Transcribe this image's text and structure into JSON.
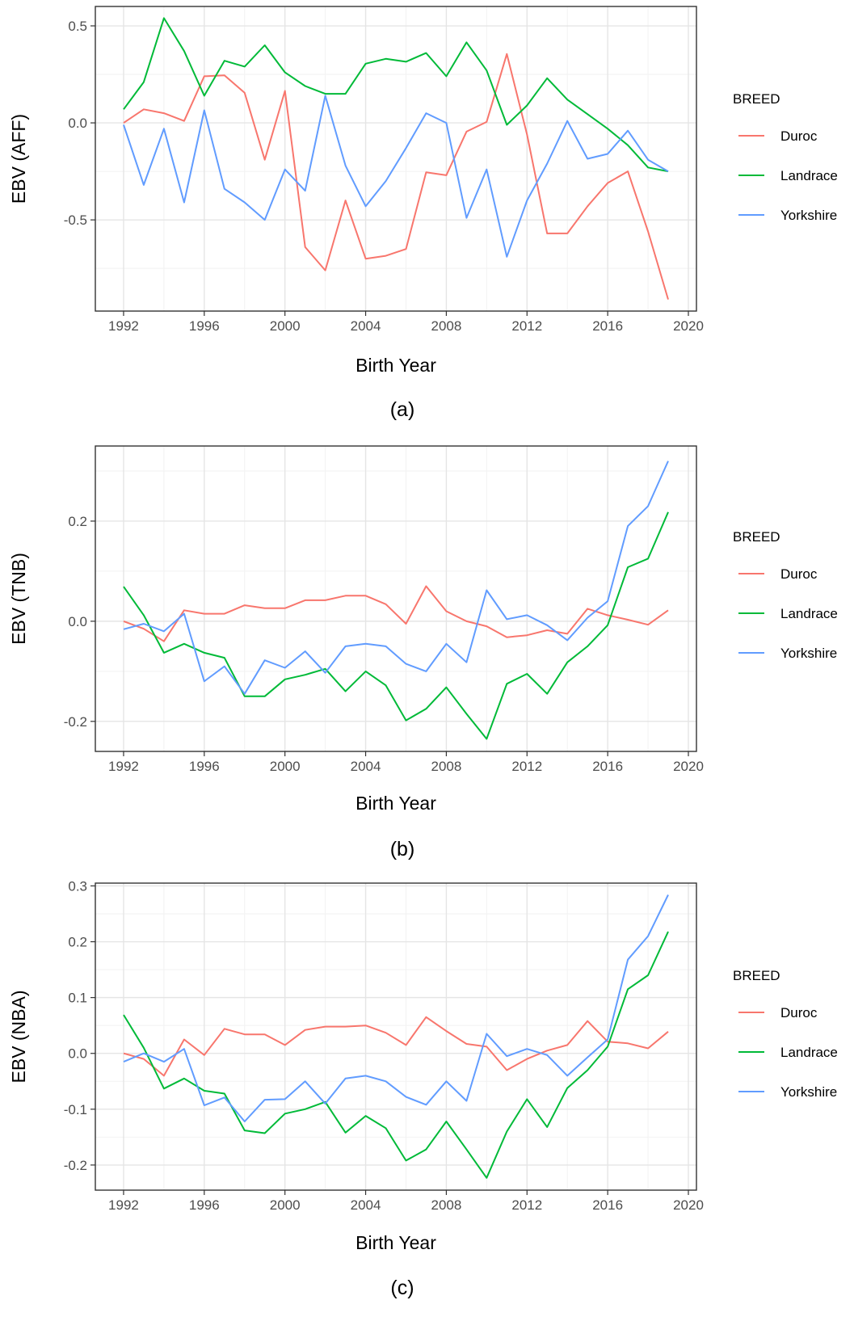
{
  "chart_data": [
    {
      "type": "line",
      "panel_label": "(a)",
      "xlabel": "Birth Year",
      "ylabel": "EBV (AFF)",
      "xlim": [
        1990.6,
        2020.4
      ],
      "ylim": [
        -0.97,
        0.6
      ],
      "xticks": [
        1992,
        1996,
        2000,
        2004,
        2008,
        2012,
        2016,
        2020
      ],
      "yticks": [
        -0.5,
        0.0,
        0.5
      ],
      "ytick_labels": [
        "-0.5",
        "0.0",
        "0.5"
      ],
      "grid": true,
      "legend": {
        "title": "BREED",
        "position": "right"
      },
      "x": [
        1992,
        1993,
        1994,
        1995,
        1996,
        1997,
        1998,
        1999,
        2000,
        2001,
        2002,
        2003,
        2004,
        2005,
        2006,
        2007,
        2008,
        2009,
        2010,
        2011,
        2012,
        2013,
        2014,
        2015,
        2016,
        2017,
        2018,
        2019
      ],
      "series": [
        {
          "name": "Duroc",
          "color": "#F8766D",
          "values": [
            0.0,
            0.07,
            0.05,
            0.01,
            0.24,
            0.245,
            0.155,
            -0.19,
            0.165,
            -0.64,
            -0.76,
            -0.4,
            -0.7,
            -0.685,
            -0.65,
            -0.255,
            -0.27,
            -0.045,
            0.005,
            0.355,
            -0.06,
            -0.57,
            -0.57,
            -0.43,
            -0.31,
            -0.25,
            -0.56,
            -0.91
          ]
        },
        {
          "name": "Landrace",
          "color": "#00BA38",
          "values": [
            0.07,
            0.21,
            0.54,
            0.37,
            0.14,
            0.32,
            0.29,
            0.4,
            0.26,
            0.19,
            0.15,
            0.15,
            0.305,
            0.33,
            0.315,
            0.36,
            0.24,
            0.415,
            0.27,
            -0.01,
            0.09,
            0.23,
            0.12,
            0.045,
            -0.03,
            -0.115,
            -0.23,
            -0.25
          ]
        },
        {
          "name": "Yorkshire",
          "color": "#619CFF",
          "values": [
            -0.01,
            -0.32,
            -0.03,
            -0.41,
            0.065,
            -0.34,
            -0.41,
            -0.5,
            -0.24,
            -0.35,
            0.14,
            -0.22,
            -0.43,
            -0.3,
            -0.13,
            0.05,
            0.0,
            -0.49,
            -0.24,
            -0.69,
            -0.4,
            -0.21,
            0.01,
            -0.185,
            -0.16,
            -0.04,
            -0.19,
            -0.25
          ]
        }
      ]
    },
    {
      "type": "line",
      "panel_label": "(b)",
      "xlabel": "Birth Year",
      "ylabel": "EBV (TNB)",
      "xlim": [
        1990.6,
        2020.4
      ],
      "ylim": [
        -0.26,
        0.35
      ],
      "xticks": [
        1992,
        1996,
        2000,
        2004,
        2008,
        2012,
        2016,
        2020
      ],
      "yticks": [
        -0.2,
        0.0,
        0.2
      ],
      "ytick_labels": [
        "-0.2",
        "0.0",
        "0.2"
      ],
      "grid": true,
      "legend": {
        "title": "BREED",
        "position": "right"
      },
      "x": [
        1992,
        1993,
        1994,
        1995,
        1996,
        1997,
        1998,
        1999,
        2000,
        2001,
        2002,
        2003,
        2004,
        2005,
        2006,
        2007,
        2008,
        2009,
        2010,
        2011,
        2012,
        2013,
        2014,
        2015,
        2016,
        2017,
        2018,
        2019
      ],
      "series": [
        {
          "name": "Duroc",
          "color": "#F8766D",
          "values": [
            0.0,
            -0.015,
            -0.04,
            0.022,
            0.015,
            0.015,
            0.032,
            0.026,
            0.026,
            0.042,
            0.042,
            0.051,
            0.051,
            0.034,
            -0.005,
            0.07,
            0.02,
            0.0,
            -0.01,
            -0.032,
            -0.028,
            -0.018,
            -0.025,
            0.025,
            0.012,
            0.003,
            -0.007,
            0.022
          ]
        },
        {
          "name": "Landrace",
          "color": "#00BA38",
          "values": [
            0.069,
            0.012,
            -0.063,
            -0.045,
            -0.063,
            -0.073,
            -0.15,
            -0.15,
            -0.116,
            -0.107,
            -0.095,
            -0.14,
            -0.1,
            -0.128,
            -0.198,
            -0.175,
            -0.132,
            -0.185,
            -0.235,
            -0.125,
            -0.105,
            -0.145,
            -0.082,
            -0.05,
            -0.008,
            0.108,
            0.125,
            0.218
          ]
        },
        {
          "name": "Yorkshire",
          "color": "#619CFF",
          "values": [
            -0.016,
            -0.005,
            -0.02,
            0.015,
            -0.12,
            -0.09,
            -0.145,
            -0.078,
            -0.093,
            -0.06,
            -0.103,
            -0.05,
            -0.045,
            -0.05,
            -0.085,
            -0.1,
            -0.045,
            -0.082,
            0.062,
            0.004,
            0.012,
            -0.008,
            -0.038,
            0.007,
            0.04,
            0.19,
            0.23,
            0.32
          ]
        }
      ]
    },
    {
      "type": "line",
      "panel_label": "(c)",
      "xlabel": "Birth Year",
      "ylabel": "EBV (NBA)",
      "xlim": [
        1990.6,
        2020.4
      ],
      "ylim": [
        -0.245,
        0.305
      ],
      "xticks": [
        1992,
        1996,
        2000,
        2004,
        2008,
        2012,
        2016,
        2020
      ],
      "yticks": [
        -0.2,
        -0.1,
        0.0,
        0.1,
        0.2,
        0.3
      ],
      "ytick_labels": [
        "-0.2",
        "-0.1",
        "0.0",
        "0.1",
        "0.2",
        "0.3"
      ],
      "grid": true,
      "legend": {
        "title": "BREED",
        "position": "right"
      },
      "x": [
        1992,
        1993,
        1994,
        1995,
        1996,
        1997,
        1998,
        1999,
        2000,
        2001,
        2002,
        2003,
        2004,
        2005,
        2006,
        2007,
        2008,
        2009,
        2010,
        2011,
        2012,
        2013,
        2014,
        2015,
        2016,
        2017,
        2018,
        2019
      ],
      "series": [
        {
          "name": "Duroc",
          "color": "#F8766D",
          "values": [
            0.0,
            -0.01,
            -0.04,
            0.025,
            -0.003,
            0.044,
            0.034,
            0.034,
            0.015,
            0.042,
            0.048,
            0.048,
            0.05,
            0.037,
            0.015,
            0.065,
            0.04,
            0.017,
            0.012,
            -0.03,
            -0.01,
            0.005,
            0.015,
            0.058,
            0.021,
            0.018,
            0.009,
            0.039
          ]
        },
        {
          "name": "Landrace",
          "color": "#00BA38",
          "values": [
            0.069,
            0.01,
            -0.063,
            -0.045,
            -0.067,
            -0.072,
            -0.138,
            -0.143,
            -0.108,
            -0.1,
            -0.087,
            -0.142,
            -0.112,
            -0.134,
            -0.192,
            -0.172,
            -0.122,
            -0.172,
            -0.223,
            -0.14,
            -0.082,
            -0.132,
            -0.062,
            -0.03,
            0.012,
            0.115,
            0.14,
            0.218
          ]
        },
        {
          "name": "Yorkshire",
          "color": "#619CFF",
          "values": [
            -0.015,
            0.0,
            -0.015,
            0.008,
            -0.093,
            -0.079,
            -0.122,
            -0.083,
            -0.082,
            -0.05,
            -0.09,
            -0.045,
            -0.04,
            -0.05,
            -0.078,
            -0.092,
            -0.05,
            -0.085,
            0.035,
            -0.005,
            0.008,
            -0.003,
            -0.04,
            -0.007,
            0.025,
            0.168,
            0.21,
            0.284
          ]
        }
      ]
    }
  ]
}
